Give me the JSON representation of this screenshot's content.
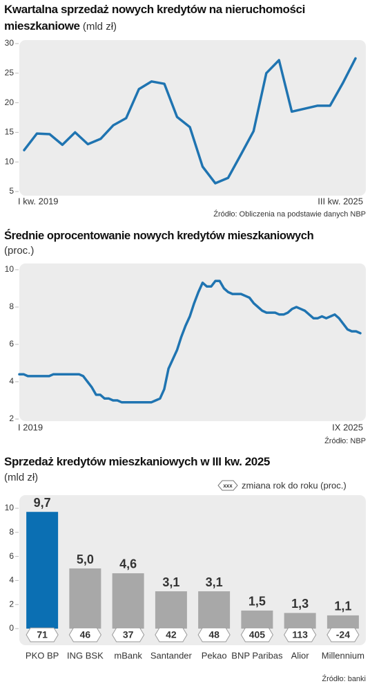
{
  "chart_data": [
    {
      "type": "line",
      "title": "Kwartalna sprzedaż nowych kredytów na nieruchomości mieszkaniowe",
      "unit": "(mld zł)",
      "categories": [
        "I kw. 2019",
        null,
        null,
        null,
        null,
        null,
        null,
        null,
        null,
        null,
        null,
        null,
        null,
        null,
        null,
        null,
        null,
        null,
        null,
        null,
        null,
        null,
        null,
        null,
        null,
        null,
        "III kw. 2025"
      ],
      "values": [
        12.0,
        14.8,
        14.7,
        12.9,
        15.0,
        13.0,
        13.9,
        16.2,
        17.4,
        22.3,
        23.6,
        23.2,
        17.6,
        15.9,
        9.2,
        6.4,
        7.3,
        11.2,
        15.2,
        25.0,
        27.2,
        18.5,
        19.0,
        19.5,
        19.5,
        23.3,
        27.5
      ],
      "color": "#1f74b1",
      "ylim": [
        5,
        30
      ],
      "yticks": [
        5,
        10,
        15,
        20,
        25,
        30
      ],
      "source": "Źródło: Obliczenia na podstawie danych NBP"
    },
    {
      "type": "line",
      "title": "Średnie oprocentowanie nowych kredytów mieszkaniowych",
      "unit": "(proc.)",
      "categories": [
        "I 2019",
        null,
        null,
        null,
        null,
        null,
        null,
        null,
        null,
        null,
        null,
        null,
        null,
        null,
        null,
        null,
        null,
        null,
        null,
        null,
        null,
        null,
        null,
        null,
        null,
        null,
        null,
        null,
        null,
        null,
        null,
        null,
        null,
        null,
        null,
        null,
        null,
        null,
        null,
        null,
        null,
        null,
        null,
        null,
        null,
        null,
        null,
        null,
        null,
        null,
        null,
        null,
        null,
        null,
        null,
        null,
        null,
        null,
        null,
        null,
        null,
        null,
        null,
        null,
        null,
        null,
        null,
        null,
        null,
        null,
        null,
        null,
        null,
        null,
        null,
        null,
        null,
        null,
        null,
        null,
        "IX 2025"
      ],
      "values": [
        4.4,
        4.4,
        4.3,
        4.3,
        4.3,
        4.3,
        4.3,
        4.3,
        4.4,
        4.4,
        4.4,
        4.4,
        4.4,
        4.4,
        4.4,
        4.3,
        4.0,
        3.7,
        3.3,
        3.3,
        3.1,
        3.1,
        3.0,
        3.0,
        2.9,
        2.9,
        2.9,
        2.9,
        2.9,
        2.9,
        2.9,
        2.9,
        3.0,
        3.1,
        3.6,
        4.7,
        5.2,
        5.7,
        6.4,
        7.0,
        7.5,
        8.2,
        8.8,
        9.3,
        9.1,
        9.1,
        9.4,
        9.4,
        9.0,
        8.8,
        8.7,
        8.7,
        8.7,
        8.6,
        8.5,
        8.2,
        8.0,
        7.8,
        7.7,
        7.7,
        7.7,
        7.6,
        7.6,
        7.7,
        7.9,
        8.0,
        7.9,
        7.8,
        7.6,
        7.4,
        7.4,
        7.5,
        7.4,
        7.5,
        7.6,
        7.4,
        7.1,
        6.8,
        6.7,
        6.7,
        6.6
      ],
      "color": "#1f74b1",
      "ylim": [
        2,
        10
      ],
      "yticks": [
        2,
        4,
        6,
        8,
        10
      ],
      "source": "Źródło: NBP"
    },
    {
      "type": "bar",
      "title": "Sprzedaż kredytów mieszkaniowych w III kw. 2025",
      "unit": "(mld zł)",
      "categories": [
        "PKO BP",
        "ING BSK",
        "mBank",
        "Santander",
        "Pekao",
        "BNP Paribas",
        "Alior",
        "Millennium"
      ],
      "values": [
        9.7,
        5.0,
        4.6,
        3.1,
        3.1,
        1.5,
        1.3,
        1.1
      ],
      "value_labels": [
        "9,7",
        "5,0",
        "4,6",
        "3,1",
        "3,1",
        "1,5",
        "1,3",
        "1,1"
      ],
      "colors": [
        "#0b6fb3",
        "#a8a8a8",
        "#a8a8a8",
        "#a8a8a8",
        "#a8a8a8",
        "#a8a8a8",
        "#a8a8a8",
        "#a8a8a8"
      ],
      "changes": {
        "name": "zmiana rok do roku (proc.)",
        "symbol": "xxx",
        "values": [
          71,
          46,
          37,
          42,
          48,
          405,
          113,
          -24
        ]
      },
      "ylim": [
        0,
        10
      ],
      "yticks": [
        0,
        2,
        4,
        6,
        8,
        10
      ],
      "source": "Źródło: banki"
    }
  ]
}
